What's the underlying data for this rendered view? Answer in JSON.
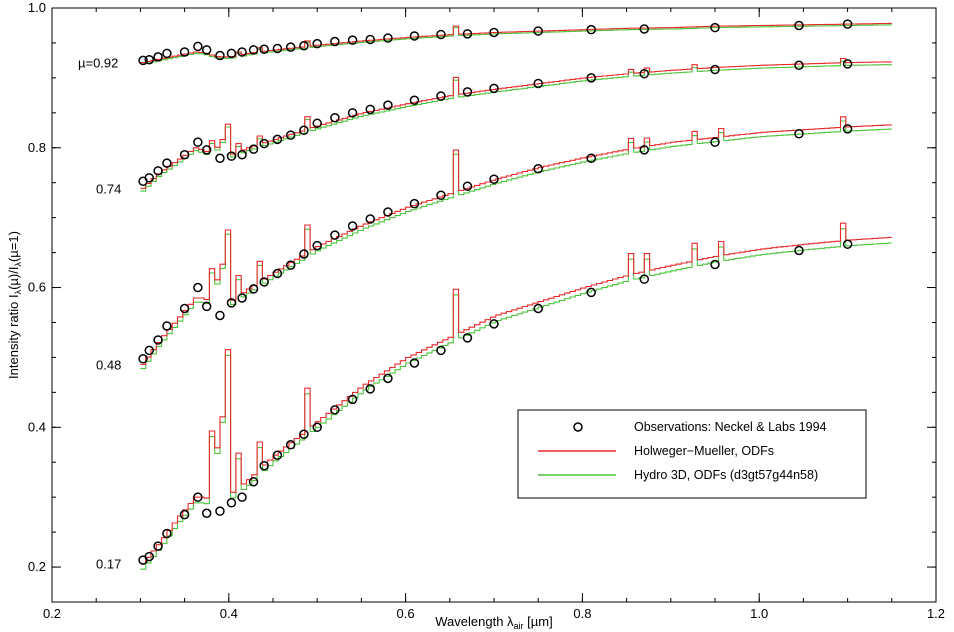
{
  "chart_data": {
    "type": "line",
    "xlabel": "Wavelength λair [µm]",
    "xlabel_main": "Wavelength λ",
    "xlabel_sub": "air",
    "xlabel_unit": " [µm]",
    "ylabel": "Intensity ratio Iλ(µ)/Iλ(µ=1)",
    "ylabel_p1": "Intensity ratio I",
    "ylabel_s1": "λ",
    "ylabel_p2": "(µ)/I",
    "ylabel_s2": "λ",
    "ylabel_p3": "(µ=1)",
    "xlim": [
      0.2,
      1.2
    ],
    "ylim": [
      0.15,
      1.0
    ],
    "xticks": [
      "0.2",
      "0.4",
      "0.6",
      "0.8",
      "1.0",
      "1.2"
    ],
    "yticks": [
      "0.2",
      "0.4",
      "0.6",
      "0.8",
      "1.0"
    ],
    "xtick_values": [
      0.2,
      0.4,
      0.6,
      0.8,
      1.0,
      1.2
    ],
    "ytick_values": [
      0.2,
      0.4,
      0.6,
      0.8,
      1.0
    ],
    "legend_position": "lower-right",
    "legend": [
      {
        "label": "Observations: Neckel & Labs 1994",
        "marker": "circle",
        "color": "#000000"
      },
      {
        "label": "Holweger−Mueller, ODFs",
        "marker": "line",
        "color": "#e8292b"
      },
      {
        "label": "Hydro 3D, ODFs (d3gt57g44n58)",
        "marker": "line",
        "color": "#4cc33a"
      }
    ],
    "curve_labels": [
      "µ=0.92",
      "0.74",
      "0.48",
      "0.17"
    ],
    "curves": [
      {
        "mu": "µ=0.92",
        "observations": [
          [
            0.303,
            0.925
          ],
          [
            0.31,
            0.926
          ],
          [
            0.32,
            0.93
          ],
          [
            0.33,
            0.935
          ],
          [
            0.35,
            0.937
          ],
          [
            0.365,
            0.945
          ],
          [
            0.375,
            0.94
          ],
          [
            0.39,
            0.932
          ],
          [
            0.403,
            0.935
          ],
          [
            0.415,
            0.937
          ],
          [
            0.428,
            0.94
          ],
          [
            0.44,
            0.941
          ],
          [
            0.455,
            0.942
          ],
          [
            0.47,
            0.944
          ],
          [
            0.485,
            0.946
          ],
          [
            0.5,
            0.949
          ],
          [
            0.52,
            0.952
          ],
          [
            0.54,
            0.954
          ],
          [
            0.56,
            0.955
          ],
          [
            0.58,
            0.957
          ],
          [
            0.61,
            0.96
          ],
          [
            0.64,
            0.962
          ],
          [
            0.67,
            0.963
          ],
          [
            0.7,
            0.965
          ],
          [
            0.75,
            0.967
          ],
          [
            0.81,
            0.969
          ],
          [
            0.87,
            0.97
          ],
          [
            0.95,
            0.972
          ],
          [
            1.045,
            0.975
          ],
          [
            1.1,
            0.977
          ]
        ],
        "hm": [
          [
            0.3,
            0.922
          ],
          [
            0.32,
            0.927
          ],
          [
            0.34,
            0.932
          ],
          [
            0.36,
            0.937
          ],
          [
            0.37,
            0.936
          ],
          [
            0.385,
            0.93
          ],
          [
            0.4,
            0.93
          ],
          [
            0.42,
            0.935
          ],
          [
            0.45,
            0.94
          ],
          [
            0.48,
            0.944
          ],
          [
            0.5,
            0.947
          ],
          [
            0.55,
            0.953
          ],
          [
            0.6,
            0.958
          ],
          [
            0.65,
            0.962
          ],
          [
            0.7,
            0.965
          ],
          [
            0.75,
            0.967
          ],
          [
            0.8,
            0.969
          ],
          [
            0.85,
            0.971
          ],
          [
            0.9,
            0.972
          ],
          [
            0.95,
            0.974
          ],
          [
            1.0,
            0.975
          ],
          [
            1.05,
            0.976
          ],
          [
            1.1,
            0.977
          ],
          [
            1.15,
            0.978
          ]
        ],
        "h3d_offset": -0.002,
        "spikes": [
          [
            0.656,
            0.012
          ],
          [
            0.486,
            0.008
          ],
          [
            0.434,
            0.006
          ],
          [
            0.41,
            0.005
          ]
        ]
      },
      {
        "mu": "0.74",
        "observations": [
          [
            0.303,
            0.752
          ],
          [
            0.31,
            0.757
          ],
          [
            0.32,
            0.767
          ],
          [
            0.33,
            0.778
          ],
          [
            0.35,
            0.79
          ],
          [
            0.365,
            0.808
          ],
          [
            0.375,
            0.797
          ],
          [
            0.39,
            0.785
          ],
          [
            0.403,
            0.788
          ],
          [
            0.415,
            0.79
          ],
          [
            0.428,
            0.798
          ],
          [
            0.44,
            0.806
          ],
          [
            0.455,
            0.812
          ],
          [
            0.47,
            0.818
          ],
          [
            0.485,
            0.825
          ],
          [
            0.5,
            0.835
          ],
          [
            0.52,
            0.843
          ],
          [
            0.54,
            0.85
          ],
          [
            0.56,
            0.855
          ],
          [
            0.58,
            0.861
          ],
          [
            0.61,
            0.868
          ],
          [
            0.64,
            0.874
          ],
          [
            0.67,
            0.88
          ],
          [
            0.7,
            0.885
          ],
          [
            0.75,
            0.892
          ],
          [
            0.81,
            0.9
          ],
          [
            0.87,
            0.906
          ],
          [
            0.95,
            0.912
          ],
          [
            1.045,
            0.918
          ],
          [
            1.1,
            0.92
          ]
        ],
        "hm": [
          [
            0.3,
            0.742
          ],
          [
            0.32,
            0.765
          ],
          [
            0.34,
            0.782
          ],
          [
            0.36,
            0.8
          ],
          [
            0.37,
            0.796
          ],
          [
            0.385,
            0.785
          ],
          [
            0.4,
            0.79
          ],
          [
            0.42,
            0.8
          ],
          [
            0.45,
            0.812
          ],
          [
            0.48,
            0.824
          ],
          [
            0.5,
            0.832
          ],
          [
            0.55,
            0.85
          ],
          [
            0.6,
            0.863
          ],
          [
            0.65,
            0.875
          ],
          [
            0.7,
            0.884
          ],
          [
            0.75,
            0.892
          ],
          [
            0.8,
            0.9
          ],
          [
            0.85,
            0.906
          ],
          [
            0.9,
            0.911
          ],
          [
            0.95,
            0.915
          ],
          [
            1.0,
            0.918
          ],
          [
            1.05,
            0.92
          ],
          [
            1.1,
            0.922
          ],
          [
            1.15,
            0.923
          ]
        ],
        "h3d_offset": -0.004,
        "spikes": [
          [
            0.656,
            0.025
          ],
          [
            0.486,
            0.018
          ],
          [
            0.434,
            0.012
          ],
          [
            0.41,
            0.012
          ],
          [
            0.397,
            0.02
          ],
          [
            0.393,
            0.025
          ],
          [
            0.383,
            0.015
          ],
          [
            0.38,
            0.02
          ],
          [
            0.85,
            0.006
          ],
          [
            0.87,
            0.006
          ],
          [
            0.925,
            0.006
          ],
          [
            1.09,
            0.006
          ]
        ]
      },
      {
        "mu": "0.48",
        "observations": [
          [
            0.303,
            0.498
          ],
          [
            0.31,
            0.51
          ],
          [
            0.32,
            0.525
          ],
          [
            0.33,
            0.545
          ],
          [
            0.35,
            0.57
          ],
          [
            0.365,
            0.6
          ],
          [
            0.375,
            0.573
          ],
          [
            0.39,
            0.56
          ],
          [
            0.403,
            0.578
          ],
          [
            0.415,
            0.585
          ],
          [
            0.428,
            0.598
          ],
          [
            0.44,
            0.608
          ],
          [
            0.455,
            0.62
          ],
          [
            0.47,
            0.632
          ],
          [
            0.485,
            0.648
          ],
          [
            0.5,
            0.66
          ],
          [
            0.52,
            0.675
          ],
          [
            0.54,
            0.688
          ],
          [
            0.56,
            0.698
          ],
          [
            0.58,
            0.708
          ],
          [
            0.61,
            0.72
          ],
          [
            0.64,
            0.732
          ],
          [
            0.67,
            0.745
          ],
          [
            0.7,
            0.755
          ],
          [
            0.75,
            0.77
          ],
          [
            0.81,
            0.785
          ],
          [
            0.87,
            0.797
          ],
          [
            0.95,
            0.808
          ],
          [
            1.045,
            0.82
          ],
          [
            1.1,
            0.827
          ]
        ],
        "hm": [
          [
            0.3,
            0.49
          ],
          [
            0.32,
            0.525
          ],
          [
            0.34,
            0.555
          ],
          [
            0.36,
            0.585
          ],
          [
            0.37,
            0.585
          ],
          [
            0.385,
            0.57
          ],
          [
            0.4,
            0.58
          ],
          [
            0.42,
            0.598
          ],
          [
            0.45,
            0.622
          ],
          [
            0.48,
            0.645
          ],
          [
            0.5,
            0.66
          ],
          [
            0.55,
            0.69
          ],
          [
            0.6,
            0.715
          ],
          [
            0.65,
            0.735
          ],
          [
            0.7,
            0.755
          ],
          [
            0.75,
            0.772
          ],
          [
            0.8,
            0.786
          ],
          [
            0.85,
            0.798
          ],
          [
            0.9,
            0.808
          ],
          [
            0.95,
            0.815
          ],
          [
            1.0,
            0.822
          ],
          [
            1.05,
            0.826
          ],
          [
            1.1,
            0.83
          ],
          [
            1.15,
            0.833
          ]
        ],
        "h3d_offset": -0.006,
        "spikes": [
          [
            0.656,
            0.06
          ],
          [
            0.486,
            0.04
          ],
          [
            0.434,
            0.03
          ],
          [
            0.41,
            0.03
          ],
          [
            0.397,
            0.045
          ],
          [
            0.393,
            0.06
          ],
          [
            0.383,
            0.04
          ],
          [
            0.38,
            0.05
          ],
          [
            0.85,
            0.015
          ],
          [
            0.87,
            0.012
          ],
          [
            0.925,
            0.012
          ],
          [
            0.955,
            0.012
          ],
          [
            1.09,
            0.015
          ]
        ]
      },
      {
        "mu": "0.17",
        "observations": [
          [
            0.303,
            0.21
          ],
          [
            0.31,
            0.215
          ],
          [
            0.32,
            0.23
          ],
          [
            0.33,
            0.248
          ],
          [
            0.35,
            0.275
          ],
          [
            0.365,
            0.3
          ],
          [
            0.375,
            0.277
          ],
          [
            0.39,
            0.28
          ],
          [
            0.403,
            0.292
          ],
          [
            0.415,
            0.3
          ],
          [
            0.428,
            0.322
          ],
          [
            0.44,
            0.345
          ],
          [
            0.455,
            0.36
          ],
          [
            0.47,
            0.375
          ],
          [
            0.485,
            0.39
          ],
          [
            0.5,
            0.4
          ],
          [
            0.52,
            0.425
          ],
          [
            0.54,
            0.44
          ],
          [
            0.56,
            0.455
          ],
          [
            0.58,
            0.47
          ],
          [
            0.61,
            0.492
          ],
          [
            0.64,
            0.51
          ],
          [
            0.67,
            0.528
          ],
          [
            0.7,
            0.548
          ],
          [
            0.75,
            0.57
          ],
          [
            0.81,
            0.593
          ],
          [
            0.87,
            0.612
          ],
          [
            0.95,
            0.633
          ],
          [
            1.045,
            0.653
          ],
          [
            1.1,
            0.662
          ]
        ],
        "hm": [
          [
            0.3,
            0.205
          ],
          [
            0.32,
            0.235
          ],
          [
            0.34,
            0.27
          ],
          [
            0.36,
            0.3
          ],
          [
            0.37,
            0.3
          ],
          [
            0.385,
            0.29
          ],
          [
            0.4,
            0.305
          ],
          [
            0.42,
            0.325
          ],
          [
            0.45,
            0.36
          ],
          [
            0.48,
            0.39
          ],
          [
            0.5,
            0.41
          ],
          [
            0.55,
            0.46
          ],
          [
            0.6,
            0.5
          ],
          [
            0.65,
            0.53
          ],
          [
            0.7,
            0.56
          ],
          [
            0.75,
            0.58
          ],
          [
            0.8,
            0.6
          ],
          [
            0.85,
            0.618
          ],
          [
            0.9,
            0.632
          ],
          [
            0.95,
            0.645
          ],
          [
            1.0,
            0.655
          ],
          [
            1.05,
            0.662
          ],
          [
            1.1,
            0.668
          ],
          [
            1.15,
            0.672
          ]
        ],
        "h3d_offset": -0.008,
        "spikes": [
          [
            0.656,
            0.065
          ],
          [
            0.486,
            0.06
          ],
          [
            0.434,
            0.04
          ],
          [
            0.41,
            0.05
          ],
          [
            0.397,
            0.09
          ],
          [
            0.393,
            0.12
          ],
          [
            0.383,
            0.08
          ],
          [
            0.38,
            0.1
          ],
          [
            0.85,
            0.03
          ],
          [
            0.87,
            0.025
          ],
          [
            0.925,
            0.025
          ],
          [
            0.955,
            0.02
          ],
          [
            1.09,
            0.025
          ]
        ]
      }
    ]
  }
}
